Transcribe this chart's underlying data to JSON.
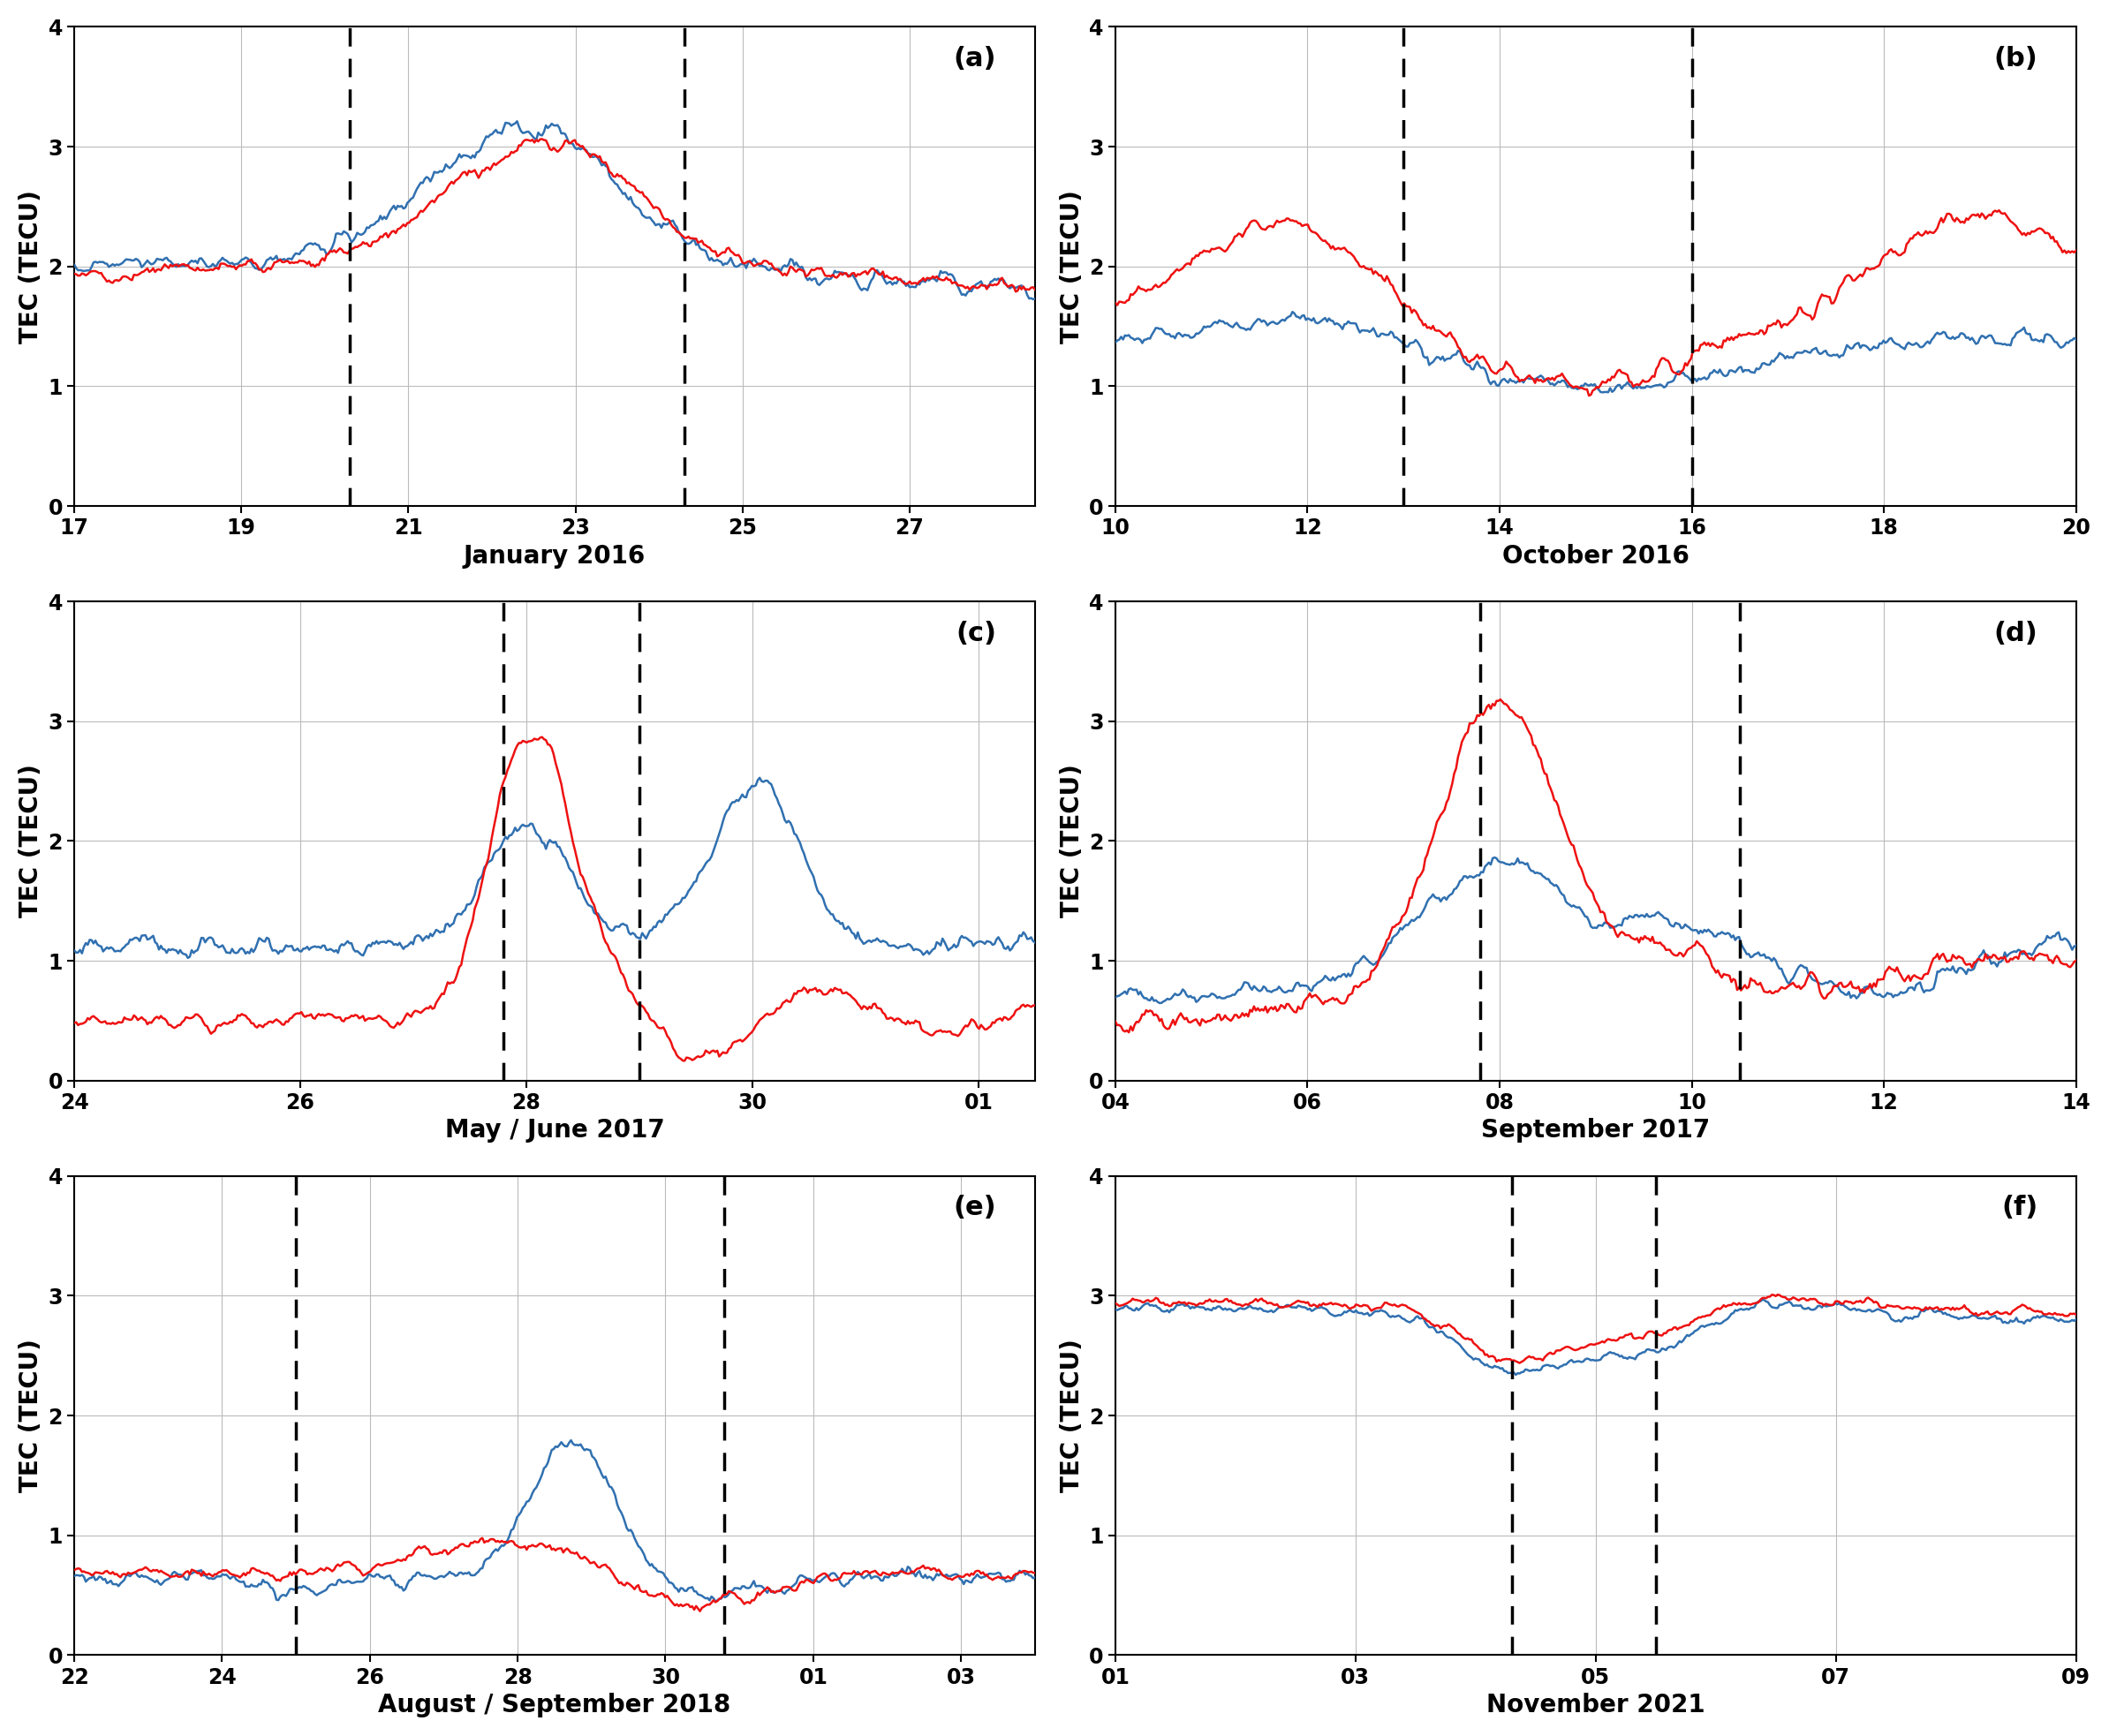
{
  "panels": [
    {
      "label": "(a)",
      "xlabel": "January 2016",
      "xlim": [
        17,
        28.5
      ],
      "xticks": [
        17,
        19,
        21,
        23,
        25,
        27
      ],
      "xticklabels": [
        "17",
        "19",
        "21",
        "23",
        "25",
        "27"
      ],
      "ylim": [
        0,
        4
      ],
      "yticks": [
        0,
        1,
        2,
        3,
        4
      ],
      "vlines": [
        20.3,
        24.3
      ],
      "seed_blue": 42,
      "seed_red": 7
    },
    {
      "label": "(b)",
      "xlabel": "October 2016",
      "xlim": [
        10,
        20
      ],
      "xticks": [
        10,
        12,
        14,
        16,
        18,
        20
      ],
      "xticklabels": [
        "10",
        "12",
        "14",
        "16",
        "18",
        "20"
      ],
      "ylim": [
        0,
        4
      ],
      "yticks": [
        0,
        1,
        2,
        3,
        4
      ],
      "vlines": [
        13.0,
        16.0
      ],
      "seed_blue": 13,
      "seed_red": 99
    },
    {
      "label": "(c)",
      "xlabel": "May / June 2017",
      "xlim": [
        24,
        32.5
      ],
      "xticks": [
        24,
        26,
        28,
        30,
        32
      ],
      "xticklabels": [
        "24",
        "26",
        "28",
        "30",
        "01"
      ],
      "ylim": [
        0,
        4
      ],
      "yticks": [
        0,
        1,
        2,
        3,
        4
      ],
      "vlines": [
        27.8,
        29.0
      ],
      "seed_blue": 55,
      "seed_red": 23
    },
    {
      "label": "(d)",
      "xlabel": "September 2017",
      "xlim": [
        4,
        14
      ],
      "xticks": [
        4,
        6,
        8,
        10,
        12,
        14
      ],
      "xticklabels": [
        "04",
        "06",
        "08",
        "10",
        "12",
        "14"
      ],
      "ylim": [
        0,
        4
      ],
      "yticks": [
        0,
        1,
        2,
        3,
        4
      ],
      "vlines": [
        7.8,
        10.5
      ],
      "seed_blue": 31,
      "seed_red": 17
    },
    {
      "label": "(e)",
      "xlabel": "August / September 2018",
      "xlim": [
        22,
        35
      ],
      "xticks": [
        22,
        24,
        26,
        28,
        30,
        32,
        34
      ],
      "xticklabels": [
        "22",
        "24",
        "26",
        "28",
        "30",
        "01",
        "03"
      ],
      "ylim": [
        0,
        4
      ],
      "yticks": [
        0,
        1,
        2,
        3,
        4
      ],
      "vlines": [
        25.0,
        30.8
      ],
      "seed_blue": 77,
      "seed_red": 44
    },
    {
      "label": "(f)",
      "xlabel": "November 2021",
      "xlim": [
        1,
        9
      ],
      "xticks": [
        1,
        3,
        5,
        7,
        9
      ],
      "xticklabels": [
        "01",
        "03",
        "05",
        "07",
        "09"
      ],
      "ylim": [
        0,
        4
      ],
      "yticks": [
        0,
        1,
        2,
        3,
        4
      ],
      "vlines": [
        4.3,
        5.5
      ],
      "seed_blue": 88,
      "seed_red": 66
    }
  ],
  "blue_color": "#3070B0",
  "red_color": "#EE1111",
  "vline_color": "black",
  "vline_lw": 2.5,
  "line_lw": 1.8,
  "grid_color": "#bbbbbb",
  "label_fontsize": 20,
  "tick_fontsize": 17,
  "panel_label_fontsize": 22,
  "ylabel": "TEC (TECU)",
  "fig_bgcolor": "white"
}
